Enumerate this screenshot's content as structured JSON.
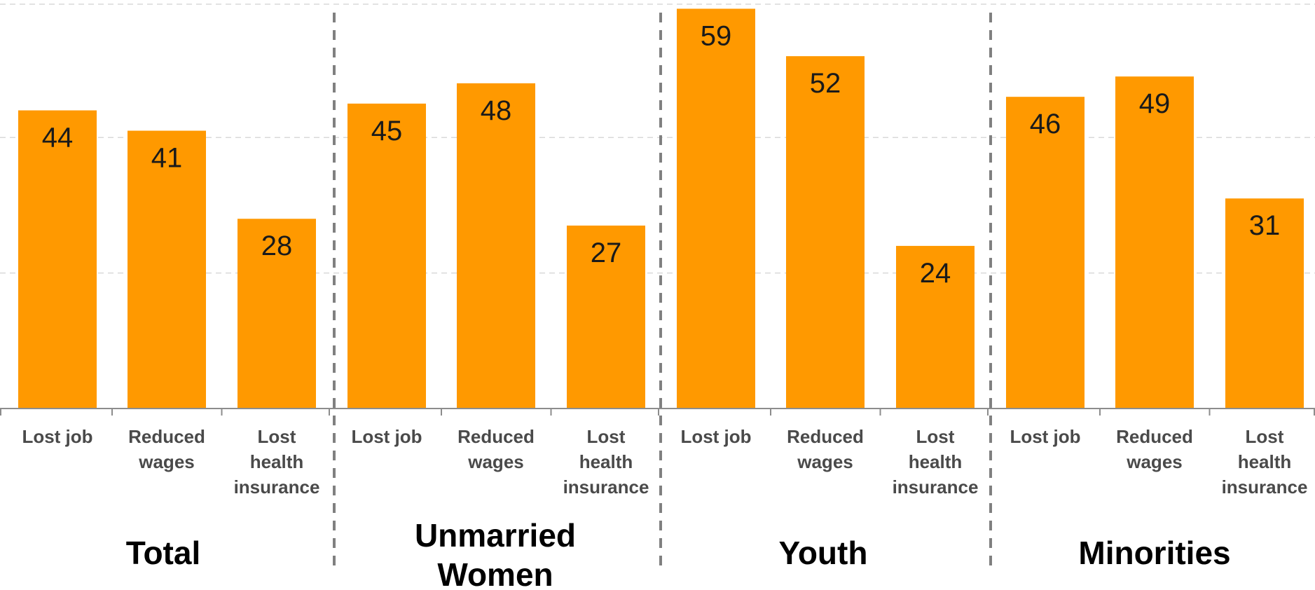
{
  "colors": {
    "bar": "#FF9900",
    "grid": "#D9D9D9",
    "axis": "#8C8C8C",
    "divider": "#808080"
  },
  "chart_data": {
    "type": "bar",
    "title": "",
    "xlabel": "",
    "ylabel": "",
    "ylim": [
      0,
      70
    ],
    "grid": true,
    "gridlines": [
      20,
      40
    ],
    "legend": "none",
    "groups": [
      {
        "label": "Total",
        "categories": [
          "Lost job",
          "Reduced wages",
          "Lost health insurance"
        ],
        "values": [
          44,
          41,
          28
        ]
      },
      {
        "label": "Unmarried Women",
        "categories": [
          "Lost job",
          "Reduced wages",
          "Lost health insurance"
        ],
        "values": [
          45,
          48,
          27
        ]
      },
      {
        "label": "Youth",
        "categories": [
          "Lost job",
          "Reduced wages",
          "Lost health insurance"
        ],
        "values": [
          59,
          52,
          24
        ]
      },
      {
        "label": "Minorities",
        "categories": [
          "Lost job",
          "Reduced wages",
          "Lost health insurance"
        ],
        "values": [
          46,
          49,
          31
        ]
      }
    ]
  }
}
